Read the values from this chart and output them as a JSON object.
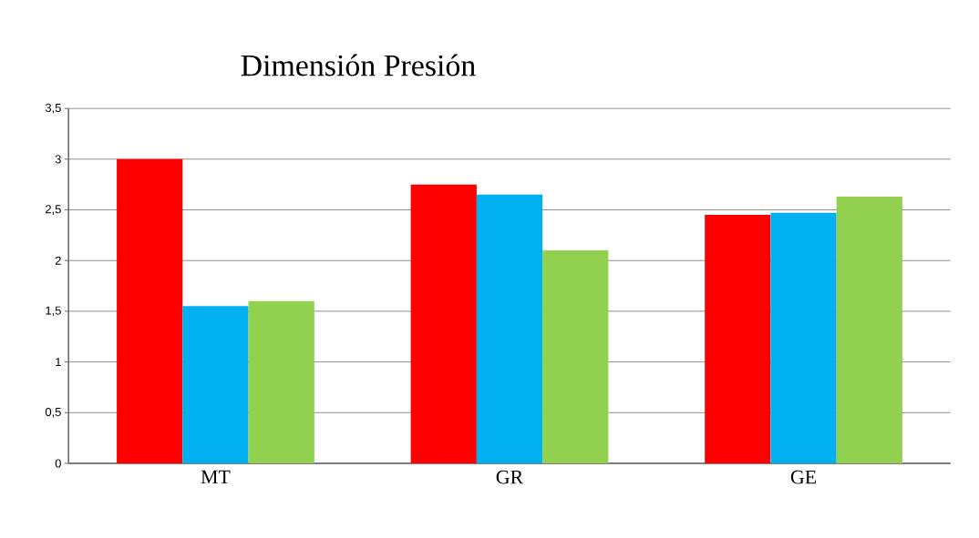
{
  "chart_data": {
    "type": "bar",
    "title": "Dimensión Presión",
    "categories": [
      "MT",
      "GR",
      "GE"
    ],
    "series": [
      {
        "color": "#ff0000",
        "values": [
          3.0,
          2.75,
          2.45
        ]
      },
      {
        "color": "#00b0f0",
        "values": [
          1.55,
          2.65,
          2.47
        ]
      },
      {
        "color": "#92d050",
        "values": [
          1.6,
          2.1,
          2.63
        ]
      }
    ],
    "ylim": [
      0,
      3.5
    ],
    "yticks": [
      0,
      {
        "value": 0.5,
        "label": "0,5"
      },
      1,
      {
        "value": 1.5,
        "label": "1,5"
      },
      2,
      {
        "value": 2.5,
        "label": "2,5"
      },
      3,
      {
        "value": 3.5,
        "label": "3,5"
      }
    ],
    "grid": "y"
  }
}
